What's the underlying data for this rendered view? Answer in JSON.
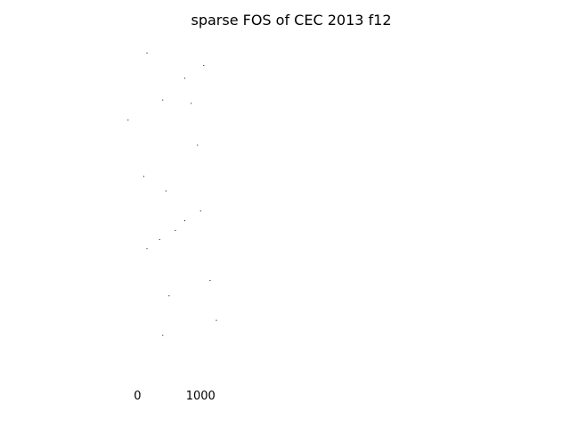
{
  "chart_data": {
    "type": "scatter",
    "title": "sparse FOS of CEC 2013 f12",
    "xlabel": "",
    "ylabel": "",
    "grid": false,
    "legend": "none",
    "xlim": [
      -1050,
      5950
    ],
    "ylim": [
      0,
      1000
    ],
    "x_ticks": [
      {
        "value": 0,
        "label": "0"
      },
      {
        "value": 1000,
        "label": "1000"
      }
    ],
    "marker_color": "#000000",
    "points": [
      {
        "x": 150,
        "y": 980
      },
      {
        "x": 1050,
        "y": 943
      },
      {
        "x": 750,
        "y": 905
      },
      {
        "x": 400,
        "y": 840
      },
      {
        "x": 850,
        "y": 830
      },
      {
        "x": -150,
        "y": 780
      },
      {
        "x": 950,
        "y": 705
      },
      {
        "x": 100,
        "y": 612
      },
      {
        "x": 450,
        "y": 569
      },
      {
        "x": 1000,
        "y": 509
      },
      {
        "x": 750,
        "y": 480
      },
      {
        "x": 600,
        "y": 451
      },
      {
        "x": 350,
        "y": 424
      },
      {
        "x": 150,
        "y": 397
      },
      {
        "x": 1150,
        "y": 302
      },
      {
        "x": 500,
        "y": 256
      },
      {
        "x": 1250,
        "y": 183
      },
      {
        "x": 400,
        "y": 138
      }
    ]
  }
}
